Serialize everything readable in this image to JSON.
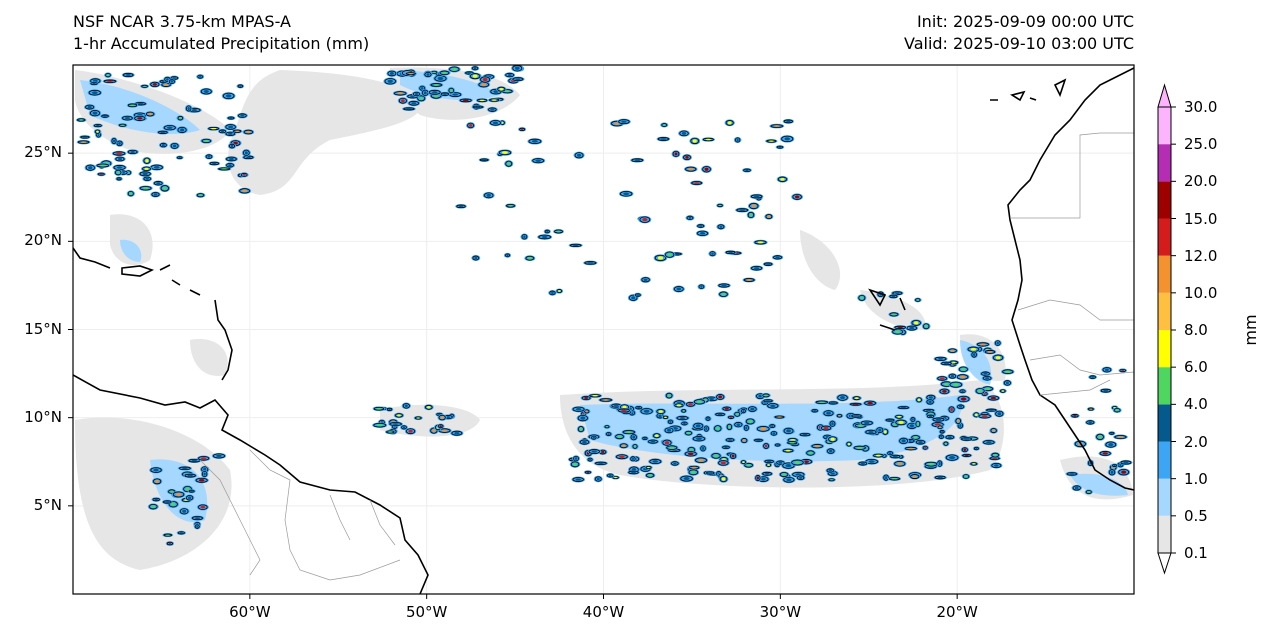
{
  "header": {
    "model_title": "NSF NCAR 3.75-km MPAS-A",
    "field_title": "1-hr Accumulated Precipitation (mm)",
    "init": "Init: 2025-09-09 00:00 UTC",
    "valid": "Valid: 2025-09-10 03:00 UTC"
  },
  "map": {
    "lon_range": [
      -70,
      -10
    ],
    "lat_range": [
      0,
      30
    ],
    "lat_ticks": [
      "25°N",
      "20°N",
      "15°N",
      "10°N",
      "5°N"
    ],
    "lon_ticks": [
      "60°W",
      "50°W",
      "40°W",
      "30°W",
      "20°W"
    ]
  },
  "colorbar": {
    "unit_label": "mm",
    "levels": [
      "0.1",
      "0.5",
      "1.0",
      "2.0",
      "4.0",
      "6.0",
      "8.0",
      "10.0",
      "12.0",
      "15.0",
      "20.0",
      "25.0",
      "30.0"
    ],
    "colors": [
      "#e6e6e6",
      "#a6d8ff",
      "#3ca6f5",
      "#045a8d",
      "#4ed660",
      "#ffff00",
      "#ffc040",
      "#f59230",
      "#d41c1c",
      "#9e0000",
      "#b42db4",
      "#fcb4fc"
    ],
    "accent_line": "#000000",
    "land_outline": "#000000",
    "border_color": "#9a9a9a",
    "grid_color": "#eeeeee"
  }
}
